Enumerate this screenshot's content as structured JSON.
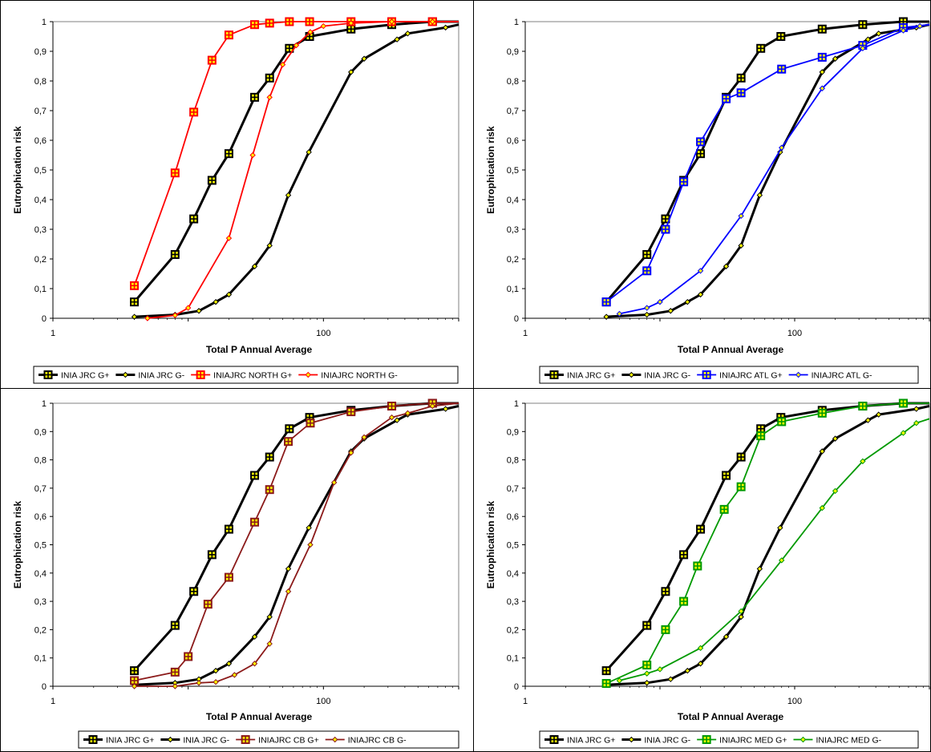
{
  "chart_data": [
    {
      "type": "line",
      "xlabel": "Total P Annual Average",
      "ylabel": "Eutrophication risk",
      "xscale": "log",
      "xlim": [
        1,
        1000
      ],
      "ylim": [
        0,
        1
      ],
      "x_ticks": [
        "1",
        "100"
      ],
      "y_ticks": [
        "0",
        "0,1",
        "0,2",
        "0,3",
        "0,4",
        "0,5",
        "0,6",
        "0,7",
        "0,8",
        "0,9",
        "1"
      ],
      "grid": false,
      "legend_position": "bottom",
      "series": [
        {
          "name": "INIA JRC G+",
          "color": "#000000",
          "marker": "square-plus",
          "points": [
            [
              4,
              0.055
            ],
            [
              8,
              0.215
            ],
            [
              11,
              0.335
            ],
            [
              15,
              0.465
            ],
            [
              20,
              0.555
            ],
            [
              31,
              0.745
            ],
            [
              40,
              0.81
            ],
            [
              56,
              0.91
            ],
            [
              79,
              0.95
            ],
            [
              160,
              0.975
            ],
            [
              320,
              0.99
            ],
            [
              640,
              1.0
            ],
            [
              1000,
              1.0
            ]
          ]
        },
        {
          "name": "INIA JRC G-",
          "color": "#000000",
          "marker": "diamond",
          "points": [
            [
              4,
              0.005
            ],
            [
              8,
              0.012
            ],
            [
              12,
              0.025
            ],
            [
              16,
              0.055
            ],
            [
              20,
              0.08
            ],
            [
              31,
              0.175
            ],
            [
              40,
              0.245
            ],
            [
              55,
              0.415
            ],
            [
              78,
              0.56
            ],
            [
              160,
              0.83
            ],
            [
              200,
              0.875
            ],
            [
              350,
              0.94
            ],
            [
              420,
              0.96
            ],
            [
              800,
              0.98
            ],
            [
              1000,
              0.99
            ]
          ]
        },
        {
          "name": "INIAJRC NORTH G+",
          "color": "#ff0000",
          "marker": "square-plus",
          "points": [
            [
              4,
              0.11
            ],
            [
              8,
              0.49
            ],
            [
              11,
              0.695
            ],
            [
              15,
              0.87
            ],
            [
              20,
              0.955
            ],
            [
              31,
              0.99
            ],
            [
              40,
              0.995
            ],
            [
              56,
              1.0
            ],
            [
              79,
              1.0
            ],
            [
              160,
              1.0
            ],
            [
              320,
              1.0
            ],
            [
              640,
              1.0
            ],
            [
              1000,
              1.0
            ]
          ]
        },
        {
          "name": "INIAJRC NORTH G-",
          "color": "#ff0000",
          "marker": "diamond",
          "points": [
            [
              5,
              0.0
            ],
            [
              8,
              0.01
            ],
            [
              10,
              0.035
            ],
            [
              20,
              0.27
            ],
            [
              30,
              0.55
            ],
            [
              40,
              0.745
            ],
            [
              50,
              0.855
            ],
            [
              63,
              0.92
            ],
            [
              80,
              0.965
            ],
            [
              100,
              0.985
            ],
            [
              160,
              0.995
            ],
            [
              320,
              1.0
            ],
            [
              640,
              1.0
            ],
            [
              1000,
              1.0
            ]
          ]
        }
      ]
    },
    {
      "type": "line",
      "xlabel": "Total P Annual Average",
      "ylabel": "Eutrophication risk",
      "xscale": "log",
      "xlim": [
        1,
        1000
      ],
      "ylim": [
        0,
        1
      ],
      "x_ticks": [
        "1",
        "100"
      ],
      "y_ticks": [
        "0",
        "0,1",
        "0,2",
        "0,3",
        "0,4",
        "0,5",
        "0,6",
        "0,7",
        "0,8",
        "0,9",
        "1"
      ],
      "grid": false,
      "legend_position": "bottom",
      "series": [
        {
          "name": "INIA JRC G+",
          "color": "#000000",
          "marker": "square-plus",
          "points": [
            [
              4,
              0.055
            ],
            [
              8,
              0.215
            ],
            [
              11,
              0.335
            ],
            [
              15,
              0.465
            ],
            [
              20,
              0.555
            ],
            [
              31,
              0.745
            ],
            [
              40,
              0.81
            ],
            [
              56,
              0.91
            ],
            [
              79,
              0.95
            ],
            [
              160,
              0.975
            ],
            [
              320,
              0.99
            ],
            [
              640,
              1.0
            ],
            [
              1000,
              1.0
            ]
          ]
        },
        {
          "name": "INIA JRC G-",
          "color": "#000000",
          "marker": "diamond",
          "points": [
            [
              4,
              0.005
            ],
            [
              8,
              0.012
            ],
            [
              12,
              0.025
            ],
            [
              16,
              0.055
            ],
            [
              20,
              0.08
            ],
            [
              31,
              0.175
            ],
            [
              40,
              0.245
            ],
            [
              55,
              0.415
            ],
            [
              78,
              0.56
            ],
            [
              160,
              0.83
            ],
            [
              200,
              0.875
            ],
            [
              350,
              0.94
            ],
            [
              420,
              0.96
            ],
            [
              800,
              0.98
            ],
            [
              1000,
              0.99
            ]
          ]
        },
        {
          "name": "INIAJRC ATL G+",
          "color": "#0000ff",
          "marker": "square-plus",
          "points": [
            [
              4,
              0.055
            ],
            [
              8,
              0.16
            ],
            [
              11,
              0.3
            ],
            [
              15,
              0.46
            ],
            [
              20,
              0.595
            ],
            [
              31,
              0.74
            ],
            [
              40,
              0.76
            ],
            [
              80,
              0.84
            ],
            [
              160,
              0.88
            ],
            [
              320,
              0.92
            ],
            [
              640,
              0.98
            ],
            [
              1000,
              0.99
            ]
          ]
        },
        {
          "name": "INIAJRC ATL G-",
          "color": "#0000ff",
          "marker": "diamond",
          "points": [
            [
              5,
              0.015
            ],
            [
              8,
              0.035
            ],
            [
              10,
              0.055
            ],
            [
              20,
              0.16
            ],
            [
              40,
              0.345
            ],
            [
              80,
              0.575
            ],
            [
              160,
              0.775
            ],
            [
              320,
              0.91
            ],
            [
              640,
              0.97
            ],
            [
              850,
              0.985
            ],
            [
              1000,
              0.99
            ]
          ]
        }
      ]
    },
    {
      "type": "line",
      "xlabel": "Total P Annual Average",
      "ylabel": "Eutrophication risk",
      "xscale": "log",
      "xlim": [
        1,
        1000
      ],
      "ylim": [
        0,
        1
      ],
      "x_ticks": [
        "1",
        "100"
      ],
      "y_ticks": [
        "0",
        "0,1",
        "0,2",
        "0,3",
        "0,4",
        "0,5",
        "0,6",
        "0,7",
        "0,8",
        "0,9",
        "1"
      ],
      "grid": false,
      "legend_position": "bottom",
      "series": [
        {
          "name": "INIA JRC G+",
          "color": "#000000",
          "marker": "square-plus",
          "points": [
            [
              4,
              0.055
            ],
            [
              8,
              0.215
            ],
            [
              11,
              0.335
            ],
            [
              15,
              0.465
            ],
            [
              20,
              0.555
            ],
            [
              31,
              0.745
            ],
            [
              40,
              0.81
            ],
            [
              56,
              0.91
            ],
            [
              79,
              0.95
            ],
            [
              160,
              0.975
            ],
            [
              320,
              0.99
            ],
            [
              640,
              1.0
            ],
            [
              1000,
              1.0
            ]
          ]
        },
        {
          "name": "INIA JRC G-",
          "color": "#000000",
          "marker": "diamond",
          "points": [
            [
              4,
              0.005
            ],
            [
              8,
              0.012
            ],
            [
              12,
              0.025
            ],
            [
              16,
              0.055
            ],
            [
              20,
              0.08
            ],
            [
              31,
              0.175
            ],
            [
              40,
              0.245
            ],
            [
              55,
              0.415
            ],
            [
              78,
              0.56
            ],
            [
              160,
              0.83
            ],
            [
              200,
              0.875
            ],
            [
              350,
              0.94
            ],
            [
              420,
              0.96
            ],
            [
              800,
              0.98
            ],
            [
              1000,
              0.99
            ]
          ]
        },
        {
          "name": "INIAJRC CB G+",
          "color": "#8b1a1a",
          "marker": "square-plus",
          "points": [
            [
              4,
              0.02
            ],
            [
              8,
              0.05
            ],
            [
              10,
              0.105
            ],
            [
              14,
              0.29
            ],
            [
              20,
              0.385
            ],
            [
              31,
              0.58
            ],
            [
              40,
              0.695
            ],
            [
              55,
              0.865
            ],
            [
              80,
              0.93
            ],
            [
              160,
              0.97
            ],
            [
              320,
              0.99
            ],
            [
              640,
              1.0
            ],
            [
              1000,
              1.0
            ]
          ]
        },
        {
          "name": "INIAJRC CB G-",
          "color": "#8b1a1a",
          "marker": "diamond",
          "points": [
            [
              4,
              0.0
            ],
            [
              8,
              0.0
            ],
            [
              12,
              0.012
            ],
            [
              16,
              0.015
            ],
            [
              22,
              0.04
            ],
            [
              31,
              0.08
            ],
            [
              40,
              0.15
            ],
            [
              55,
              0.335
            ],
            [
              80,
              0.5
            ],
            [
              120,
              0.72
            ],
            [
              160,
              0.825
            ],
            [
              200,
              0.88
            ],
            [
              320,
              0.95
            ],
            [
              420,
              0.965
            ],
            [
              640,
              0.99
            ],
            [
              1000,
              1.0
            ]
          ]
        }
      ]
    },
    {
      "type": "line",
      "xlabel": "Total P Annual Average",
      "ylabel": "Eutrophication risk",
      "xscale": "log",
      "xlim": [
        1,
        1000
      ],
      "ylim": [
        0,
        1
      ],
      "x_ticks": [
        "1",
        "100"
      ],
      "y_ticks": [
        "0",
        "0,1",
        "0,2",
        "0,3",
        "0,4",
        "0,5",
        "0,6",
        "0,7",
        "0,8",
        "0,9",
        "1"
      ],
      "grid": false,
      "legend_position": "bottom",
      "series": [
        {
          "name": "INIA JRC G+",
          "color": "#000000",
          "marker": "square-plus",
          "points": [
            [
              4,
              0.055
            ],
            [
              8,
              0.215
            ],
            [
              11,
              0.335
            ],
            [
              15,
              0.465
            ],
            [
              20,
              0.555
            ],
            [
              31,
              0.745
            ],
            [
              40,
              0.81
            ],
            [
              56,
              0.91
            ],
            [
              79,
              0.95
            ],
            [
              160,
              0.975
            ],
            [
              320,
              0.99
            ],
            [
              640,
              1.0
            ],
            [
              1000,
              1.0
            ]
          ]
        },
        {
          "name": "INIA JRC G-",
          "color": "#000000",
          "marker": "diamond",
          "points": [
            [
              4,
              0.005
            ],
            [
              8,
              0.012
            ],
            [
              12,
              0.025
            ],
            [
              16,
              0.055
            ],
            [
              20,
              0.08
            ],
            [
              31,
              0.175
            ],
            [
              40,
              0.245
            ],
            [
              55,
              0.415
            ],
            [
              78,
              0.56
            ],
            [
              160,
              0.83
            ],
            [
              200,
              0.875
            ],
            [
              350,
              0.94
            ],
            [
              420,
              0.96
            ],
            [
              800,
              0.98
            ],
            [
              1000,
              0.99
            ]
          ]
        },
        {
          "name": "INIAJRC MED G+",
          "color": "#009900",
          "marker": "square-plus",
          "points": [
            [
              4,
              0.01
            ],
            [
              8,
              0.075
            ],
            [
              11,
              0.2
            ],
            [
              15,
              0.3
            ],
            [
              19,
              0.425
            ],
            [
              30,
              0.625
            ],
            [
              40,
              0.705
            ],
            [
              56,
              0.885
            ],
            [
              80,
              0.935
            ],
            [
              160,
              0.965
            ],
            [
              320,
              0.99
            ],
            [
              640,
              1.0
            ],
            [
              1000,
              1.0
            ]
          ]
        },
        {
          "name": "INIAJRC MED G-",
          "color": "#009900",
          "marker": "diamond",
          "points": [
            [
              5,
              0.02
            ],
            [
              8,
              0.045
            ],
            [
              10,
              0.06
            ],
            [
              20,
              0.135
            ],
            [
              40,
              0.265
            ],
            [
              80,
              0.445
            ],
            [
              160,
              0.63
            ],
            [
              200,
              0.69
            ],
            [
              320,
              0.795
            ],
            [
              640,
              0.895
            ],
            [
              800,
              0.93
            ],
            [
              1000,
              0.945
            ]
          ]
        }
      ]
    }
  ]
}
